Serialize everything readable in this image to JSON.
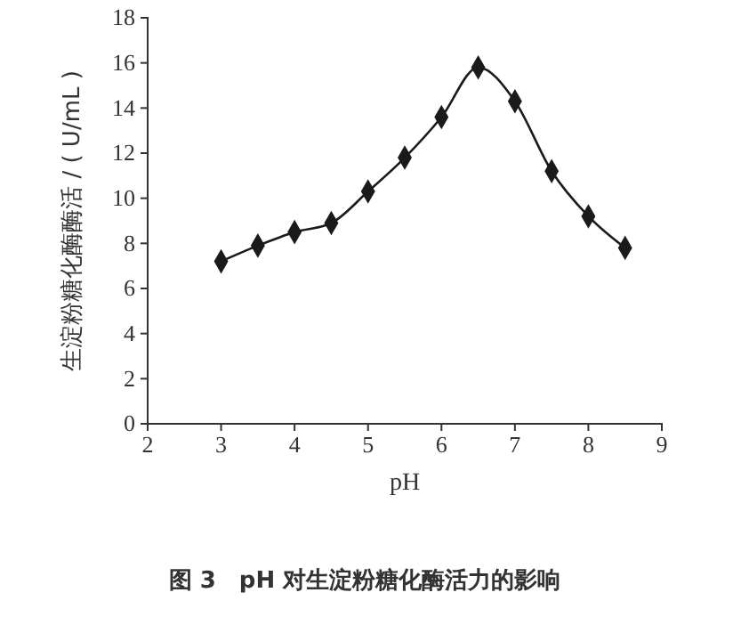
{
  "chart_data": {
    "type": "line",
    "title": "图 3　pH 对生淀粉糖化酶活力的影响",
    "xlabel": "pH",
    "ylabel": "生淀粉糖化酶酶活 / ( U/mL )",
    "x": [
      3,
      3.5,
      4,
      4.5,
      5,
      5.5,
      6,
      6.5,
      7,
      7.5,
      8,
      8.5
    ],
    "series": [
      {
        "color": "#1a1a1a",
        "values": [
          7.2,
          7.9,
          8.5,
          8.9,
          10.3,
          11.8,
          13.6,
          15.8,
          14.3,
          11.2,
          9.2,
          7.8
        ]
      }
    ],
    "xlim": [
      2,
      9
    ],
    "xticks": [
      2,
      3,
      4,
      5,
      6,
      7,
      8,
      9
    ],
    "ylim": [
      0,
      18
    ],
    "yticks": [
      0,
      2,
      4,
      6,
      8,
      10,
      12,
      14,
      16,
      18
    ],
    "marker": "diamond",
    "line_style": "solid"
  }
}
